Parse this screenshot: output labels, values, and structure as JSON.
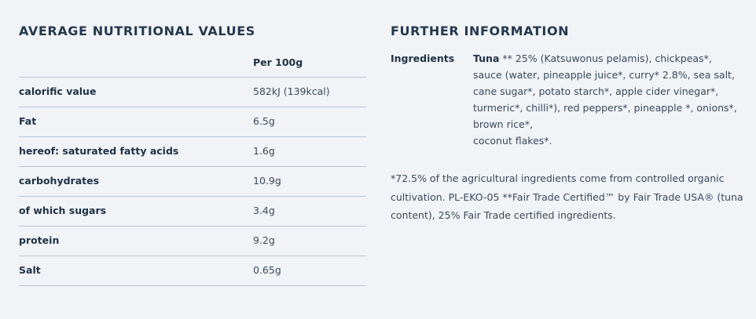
{
  "nutrition": {
    "title": "AVERAGE NUTRITIONAL VALUES",
    "header": "Per 100g",
    "rows": [
      [
        "calorific value",
        "582kJ (139kcal)"
      ],
      [
        "Fat",
        "6.5g"
      ],
      [
        "hereof: saturated fatty acids",
        "1.6g"
      ],
      [
        "carbohydrates",
        "10.9g"
      ],
      [
        "of which sugars",
        "3.4g"
      ],
      [
        "protein",
        "9.2g"
      ],
      [
        "Salt",
        "0.65g"
      ]
    ]
  },
  "further": {
    "title": "FURTHER INFORMATION",
    "ingredients_label": "Ingredients",
    "ingredients_bold": "Tuna",
    "ingredients_lines": [
      " ** 25% (Katsuwonus pelamis), chickpeas*,",
      "sauce (water, pineapple juice*, curry* 2.8%, sea salt,",
      "cane sugar*, potato starch*, apple cider vinegar*,",
      "turmeric*, chilli*), red peppers*, pineapple *, onions*,",
      "brown rice*,",
      "coconut flakes*."
    ],
    "note_lines": [
      "*72.5% of the agricultural ingredients come from controlled organic",
      "cultivation. PL-EKO-05 **Fair Trade Certified™ by Fair Trade USA® (tuna",
      "content), 25% Fair Trade certified ingredients."
    ]
  }
}
